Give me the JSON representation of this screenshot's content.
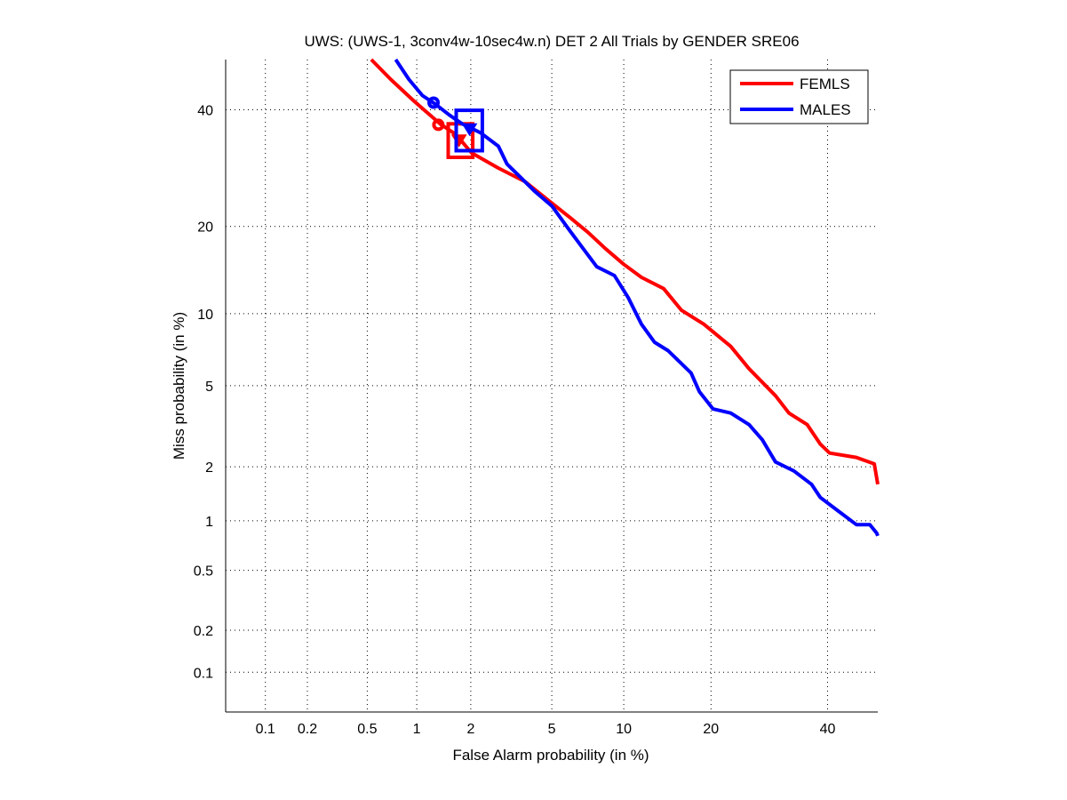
{
  "chart_data": {
    "type": "line",
    "scale": "probit",
    "title": "UWS: (UWS-1, 3conv4w-10sec4w.n) DET 2 All Trials by GENDER SRE06",
    "xlabel": "False Alarm probability (in %)",
    "ylabel": "Miss probability (in %)",
    "xlim": [
      0.05,
      50
    ],
    "ylim": [
      0.05,
      50
    ],
    "xticks": [
      0.1,
      0.2,
      0.5,
      1,
      2,
      5,
      10,
      20,
      40
    ],
    "xtick_labels": [
      "0.1",
      "0.2",
      "0.5",
      "1",
      "2",
      "5",
      "10",
      "20",
      "40"
    ],
    "yticks": [
      0.1,
      0.2,
      0.5,
      1,
      2,
      5,
      10,
      20,
      40
    ],
    "ytick_labels": [
      "0.1",
      "0.2",
      "0.5",
      "1",
      "2",
      "5",
      "10",
      "20",
      "40"
    ],
    "grid": true,
    "legend_position": "top-right",
    "series": [
      {
        "name": "FEMLS",
        "color": "#ff0000",
        "points": [
          [
            0.53,
            50
          ],
          [
            0.7,
            46.0
          ],
          [
            0.95,
            41.9
          ],
          [
            1.12,
            39.8
          ],
          [
            1.36,
            37.3
          ],
          [
            1.61,
            35.6
          ],
          [
            1.8,
            33.9
          ],
          [
            2.02,
            31.9
          ],
          [
            2.78,
            29.2
          ],
          [
            3.76,
            26.9
          ],
          [
            4.78,
            24.0
          ],
          [
            6.01,
            21.3
          ],
          [
            7.17,
            19.2
          ],
          [
            8.48,
            17.0
          ],
          [
            9.98,
            15.1
          ],
          [
            11.65,
            13.6
          ],
          [
            14.0,
            12.4
          ],
          [
            16.1,
            10.3
          ],
          [
            19.0,
            9.1
          ],
          [
            22.9,
            7.4
          ],
          [
            25.8,
            5.95
          ],
          [
            30.3,
            4.5
          ],
          [
            32.7,
            3.73
          ],
          [
            36.1,
            3.28
          ],
          [
            38.6,
            2.62
          ],
          [
            40.4,
            2.36
          ],
          [
            45.7,
            2.24
          ],
          [
            49.3,
            2.07
          ],
          [
            50,
            1.61
          ]
        ],
        "min_dcf_point": [
          1.33,
          37.1
        ],
        "act_dcf_point": [
          1.73,
          34.2
        ],
        "confidence_box": {
          "fa": [
            1.51,
            2.05
          ],
          "miss": [
            31.1,
            37.3
          ]
        }
      },
      {
        "name": "MALES",
        "color": "#0000ff",
        "points": [
          [
            0.75,
            50
          ],
          [
            0.9,
            46.0
          ],
          [
            1.08,
            42.8
          ],
          [
            1.28,
            41.1
          ],
          [
            1.53,
            39.0
          ],
          [
            1.8,
            37.3
          ],
          [
            2.25,
            35.6
          ],
          [
            2.78,
            33.1
          ],
          [
            3.07,
            29.9
          ],
          [
            3.58,
            27.6
          ],
          [
            4.15,
            25.4
          ],
          [
            5.01,
            23.0
          ],
          [
            6.01,
            19.4
          ],
          [
            6.86,
            17.0
          ],
          [
            7.81,
            14.8
          ],
          [
            9.2,
            13.8
          ],
          [
            10.4,
            11.5
          ],
          [
            11.65,
            9.1
          ],
          [
            13.0,
            7.7
          ],
          [
            14.5,
            7.1
          ],
          [
            15.6,
            6.5
          ],
          [
            17.3,
            5.7
          ],
          [
            18.4,
            4.7
          ],
          [
            20.3,
            3.9
          ],
          [
            22.9,
            3.73
          ],
          [
            25.8,
            3.28
          ],
          [
            28.0,
            2.76
          ],
          [
            30.3,
            2.12
          ],
          [
            33.6,
            1.9
          ],
          [
            36.9,
            1.61
          ],
          [
            38.6,
            1.36
          ],
          [
            42.1,
            1.14
          ],
          [
            45.7,
            0.95
          ],
          [
            48.4,
            0.95
          ],
          [
            49.8,
            0.845
          ],
          [
            50,
            0.815
          ]
        ],
        "min_dcf_point": [
          1.25,
          41.4
        ],
        "act_dcf_point": [
          1.97,
          36.3
        ],
        "confidence_box": {
          "fa": [
            1.67,
            2.3
          ],
          "miss": [
            32.3,
            39.9
          ]
        }
      }
    ]
  }
}
